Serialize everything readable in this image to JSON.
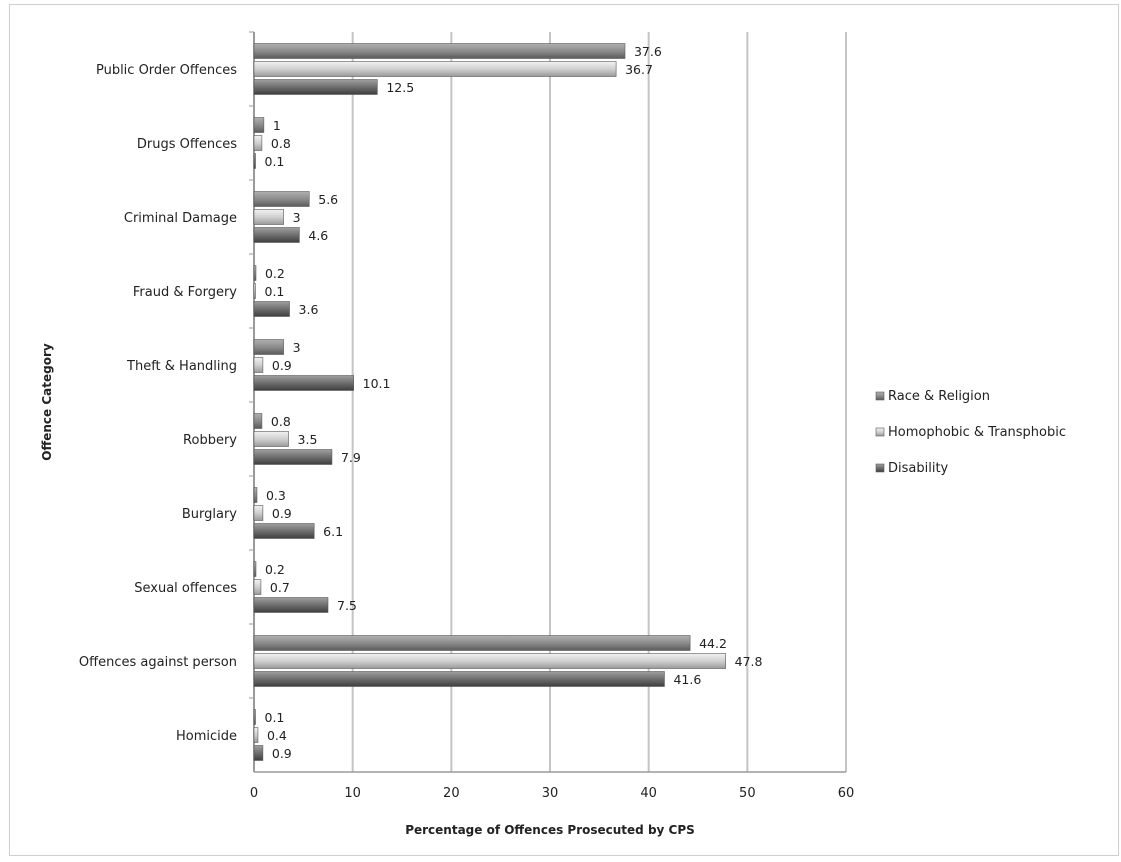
{
  "chart_data": {
    "type": "bar",
    "orientation": "horizontal",
    "title": "",
    "xlabel": "Percentage of Offences Prosecuted by CPS",
    "ylabel": "Offence Category",
    "xlim": [
      0,
      60
    ],
    "xticks": [
      0,
      10,
      20,
      30,
      40,
      50,
      60
    ],
    "grid": "vertical",
    "legend_position": "right",
    "categories": [
      "Public Order Offences",
      "Drugs Offences",
      "Criminal Damage",
      "Fraud & Forgery",
      "Theft & Handling",
      "Robbery",
      "Burglary",
      "Sexual offences",
      "Offences against person",
      "Homicide"
    ],
    "series": [
      {
        "name": "Race & Religion",
        "color": "#8c8c8c",
        "values": [
          37.6,
          1,
          5.6,
          0.2,
          3,
          0.8,
          0.3,
          0.2,
          44.2,
          0.1
        ]
      },
      {
        "name": "Homophobic & Transphobic",
        "color": "#c8c8c8",
        "values": [
          36.7,
          0.8,
          3,
          0.1,
          0.9,
          3.5,
          0.9,
          0.7,
          47.8,
          0.4
        ]
      },
      {
        "name": "Disability",
        "color": "#6e6e6e",
        "values": [
          12.5,
          0.1,
          4.6,
          3.6,
          10.1,
          7.9,
          6.1,
          7.5,
          41.6,
          0.9
        ]
      }
    ]
  }
}
